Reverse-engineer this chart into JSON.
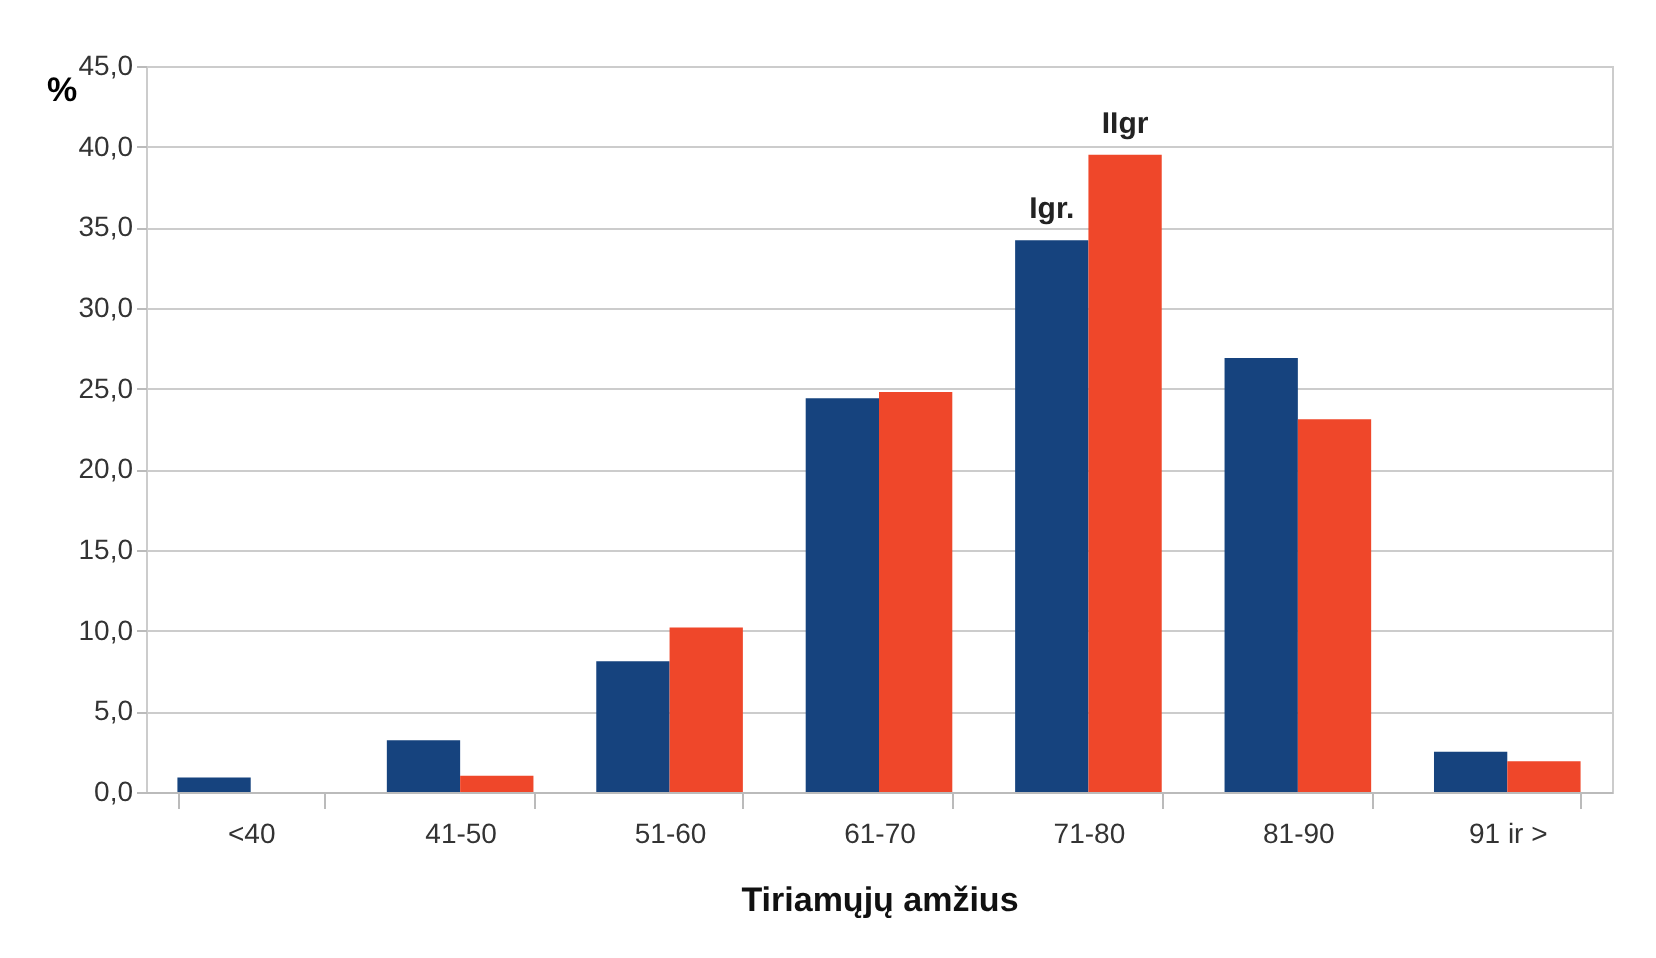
{
  "chart_data": {
    "type": "bar",
    "xlabel": "Tiriamųjų amžius",
    "ylabel": "%",
    "categories": [
      "<40",
      "41-50",
      "51-60",
      "61-70",
      "71-80",
      "81-90",
      "91 ir >"
    ],
    "series": [
      {
        "name": "Igr.",
        "color": "#16437e",
        "values": [
          0.9,
          3.2,
          8.1,
          24.4,
          34.2,
          26.9,
          2.5
        ]
      },
      {
        "name": "IIgr",
        "color": "#ef472a",
        "values": [
          0,
          1.0,
          10.2,
          24.8,
          39.5,
          23.1,
          1.9
        ]
      }
    ],
    "ylim": [
      0,
      45
    ],
    "yticks": [
      {
        "value": 0,
        "label": "0,0"
      },
      {
        "value": 5,
        "label": "5,0"
      },
      {
        "value": 10,
        "label": "10,0"
      },
      {
        "value": 15,
        "label": "15,0"
      },
      {
        "value": 20,
        "label": "20,0"
      },
      {
        "value": 25,
        "label": "25,0"
      },
      {
        "value": 30,
        "label": "30,0"
      },
      {
        "value": 35,
        "label": "35,0"
      },
      {
        "value": 40,
        "label": "40,0"
      },
      {
        "value": 45,
        "label": "45,0"
      }
    ],
    "grid": "y",
    "legend": false
  }
}
